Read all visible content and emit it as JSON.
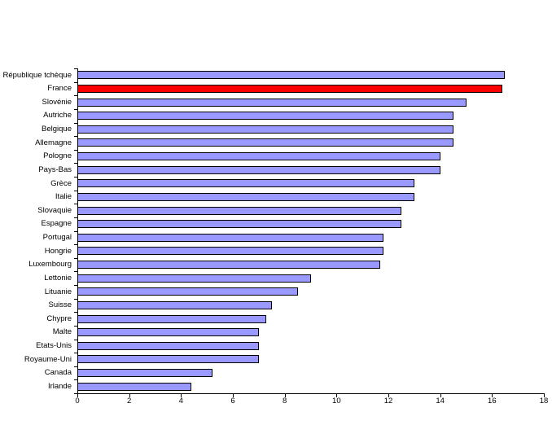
{
  "chart_data": {
    "type": "bar",
    "orientation": "horizontal",
    "title": "",
    "xlabel": "",
    "ylabel": "",
    "grid": false,
    "legend": "none",
    "xlim": [
      0,
      18
    ],
    "x_ticks": [
      0,
      2,
      4,
      6,
      8,
      10,
      12,
      14,
      16,
      18
    ],
    "highlight_category": "France",
    "colors": {
      "bar_fill": "#9999FF",
      "highlight_fill": "#FF0000",
      "bar_border": "#000000",
      "axis": "#000000",
      "text": "#000000",
      "background": "#FFFFFF"
    },
    "categories": [
      "République tchèque",
      "France",
      "Slovénie",
      "Autriche",
      "Belgique",
      "Allemagne",
      "Pologne",
      "Pays-Bas",
      "Grèce",
      "Italie",
      "Slovaquie",
      "Espagne",
      "Portugal",
      "Hongrie",
      "Luxembourg",
      "Lettonie",
      "Lituanie",
      "Suisse",
      "Chypre",
      "Malte",
      "Etats-Unis",
      "Royaume-Uni",
      "Canada",
      "Irlande"
    ],
    "values": [
      16.5,
      16.4,
      15.0,
      14.5,
      14.5,
      14.5,
      14.0,
      14.0,
      13.0,
      13.0,
      12.5,
      12.5,
      11.8,
      11.8,
      11.7,
      9.0,
      8.5,
      7.5,
      7.3,
      7.0,
      7.0,
      7.0,
      5.2,
      4.4
    ]
  }
}
